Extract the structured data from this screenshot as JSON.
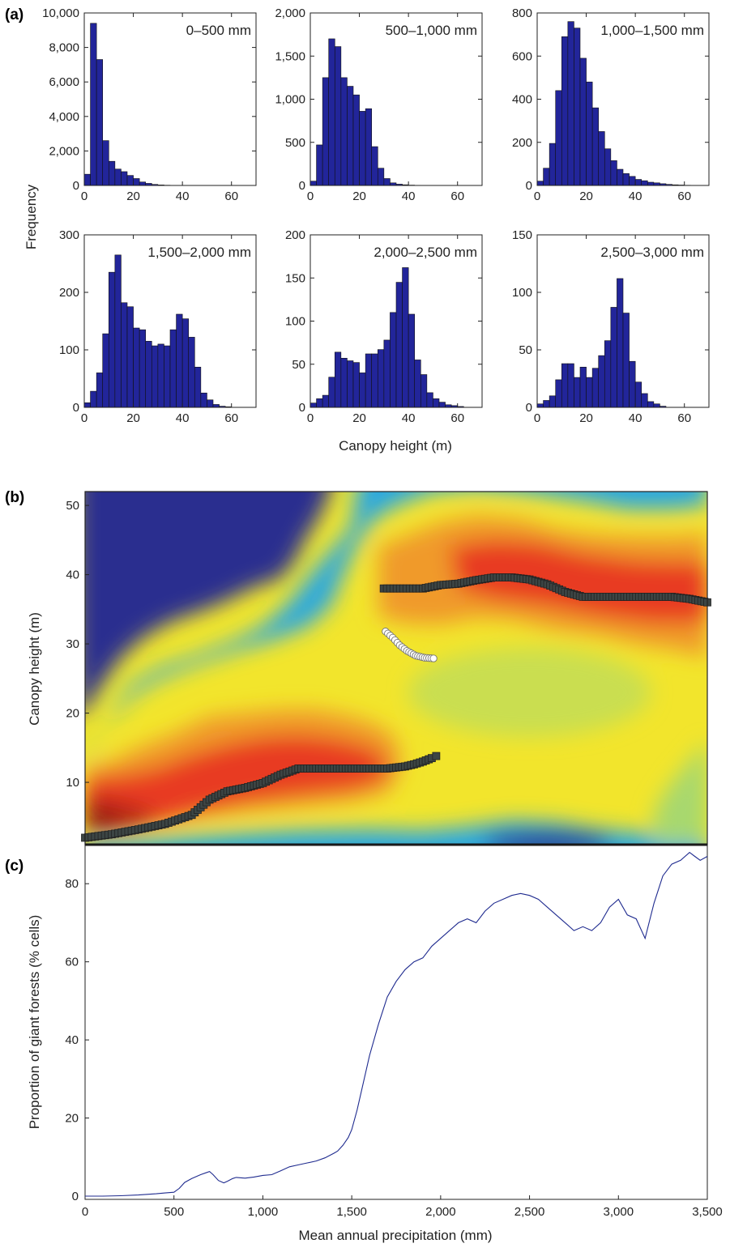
{
  "chart_data": [
    {
      "panel": "(a)",
      "type": "bar",
      "xlabel": "Canopy height (m)",
      "ylabel": "Frequency",
      "bin_width_m": 2.5,
      "bin_starts": [
        0,
        2.5,
        5,
        7.5,
        10,
        12.5,
        15,
        17.5,
        20,
        22.5,
        25,
        27.5,
        30,
        32.5,
        35,
        37.5,
        40,
        42.5,
        45,
        47.5,
        50,
        52.5,
        55,
        57.5,
        60,
        62.5,
        65,
        67.5
      ],
      "xlim": [
        0,
        70
      ],
      "xticks": [
        "0",
        "20",
        "40",
        "60"
      ],
      "bar_color": "#22259a",
      "histograms": [
        {
          "label": "0–500 mm",
          "ylim": [
            0,
            10000
          ],
          "yticks": [
            "0",
            "2,000",
            "4,000",
            "6,000",
            "8,000",
            "10,000"
          ],
          "values": [
            650,
            9400,
            7300,
            2600,
            1400,
            950,
            800,
            580,
            400,
            200,
            120,
            60,
            30,
            15,
            8,
            4,
            2,
            1,
            0,
            0,
            0,
            0,
            0,
            0,
            0,
            0,
            0,
            0
          ]
        },
        {
          "label": "500–1,000 mm",
          "ylim": [
            0,
            2000
          ],
          "yticks": [
            "0",
            "500",
            "1,000",
            "1,500",
            "2,000"
          ],
          "values": [
            50,
            470,
            1250,
            1700,
            1610,
            1250,
            1150,
            1050,
            860,
            890,
            450,
            200,
            80,
            30,
            15,
            8,
            4,
            2,
            1,
            0,
            0,
            0,
            0,
            0,
            0,
            0,
            0,
            0
          ]
        },
        {
          "label": "1,000–1,500 mm",
          "ylim": [
            0,
            800
          ],
          "yticks": [
            "0",
            "200",
            "400",
            "600",
            "800"
          ],
          "values": [
            20,
            80,
            195,
            440,
            690,
            760,
            730,
            590,
            480,
            360,
            250,
            170,
            115,
            75,
            55,
            42,
            28,
            22,
            15,
            12,
            8,
            5,
            3,
            2,
            1,
            0,
            0,
            0
          ]
        },
        {
          "label": "1,500–2,000 mm",
          "ylim": [
            0,
            300
          ],
          "yticks": [
            "0",
            "100",
            "200",
            "300"
          ],
          "values": [
            8,
            28,
            60,
            128,
            235,
            265,
            182,
            175,
            138,
            135,
            115,
            107,
            110,
            107,
            135,
            162,
            154,
            122,
            70,
            25,
            13,
            5,
            2,
            1,
            0,
            0,
            0,
            0
          ]
        },
        {
          "label": "2,000–2,500 mm",
          "ylim": [
            0,
            200
          ],
          "yticks": [
            "0",
            "50",
            "100",
            "150",
            "200"
          ],
          "values": [
            5,
            10,
            14,
            35,
            64,
            57,
            54,
            52,
            40,
            62,
            62,
            67,
            78,
            110,
            145,
            162,
            108,
            55,
            38,
            17,
            10,
            6,
            3,
            2,
            1,
            0,
            0,
            0
          ]
        },
        {
          "label": "2,500–3,000 mm",
          "ylim": [
            0,
            150
          ],
          "yticks": [
            "0",
            "50",
            "100",
            "150"
          ],
          "values": [
            3,
            6,
            10,
            24,
            38,
            38,
            26,
            35,
            26,
            34,
            45,
            58,
            87,
            112,
            82,
            40,
            22,
            12,
            5,
            3,
            1,
            0,
            0,
            0,
            0,
            0,
            0,
            0
          ]
        }
      ]
    },
    {
      "panel": "(b)",
      "type": "heatmap",
      "ylabel": "Canopy height (m)",
      "ylim": [
        1,
        52
      ],
      "xlim": [
        0,
        3500
      ],
      "yticks": [
        "10",
        "20",
        "30",
        "40",
        "50"
      ],
      "colormap": [
        "#2a2f8f",
        "#29a8e0",
        "#a7d86e",
        "#f2e52c",
        "#f09a2a",
        "#e83a22",
        "#b22417",
        "#8b1a12"
      ],
      "lower_mode": {
        "marker": "dark-square",
        "x": [
          0,
          150,
          300,
          450,
          600,
          700,
          800,
          900,
          1000,
          1100,
          1200,
          1300,
          1400,
          1500,
          1600,
          1700,
          1800,
          1850,
          1900,
          1950,
          1975
        ],
        "y": [
          2,
          2.5,
          3.2,
          4.0,
          5.3,
          7.5,
          8.7,
          9.2,
          9.9,
          11.1,
          12.0,
          12.0,
          12.0,
          12.0,
          12.0,
          12.0,
          12.3,
          12.6,
          13.0,
          13.5,
          13.8
        ]
      },
      "upper_mode": {
        "marker": "dark-square",
        "x": [
          1680,
          1900,
          2000,
          2100,
          2200,
          2300,
          2400,
          2500,
          2600,
          2700,
          2800,
          2900,
          3000,
          3100,
          3200,
          3300,
          3400,
          3500
        ],
        "y": [
          38,
          38,
          38.5,
          38.7,
          39.2,
          39.6,
          39.6,
          39.3,
          38.6,
          37.5,
          36.8,
          36.8,
          36.8,
          36.8,
          36.8,
          36.8,
          36.5,
          36.0
        ]
      },
      "trough": {
        "marker": "white-circle",
        "x": [
          1690,
          1730,
          1770,
          1810,
          1860,
          1910,
          1960
        ],
        "y": [
          31.8,
          30.9,
          29.8,
          29.0,
          28.3,
          28.0,
          27.9
        ]
      }
    },
    {
      "panel": "(c)",
      "type": "line",
      "xlabel": "Mean annual precipitation (mm)",
      "ylabel": "Proportion of giant forests (% cells)",
      "xlim": [
        0,
        3500
      ],
      "ylim": [
        0,
        90
      ],
      "xticks": [
        "0",
        "500",
        "1,000",
        "1,500",
        "2,000",
        "2,500",
        "3,000",
        "3,500"
      ],
      "yticks": [
        "0",
        "20",
        "40",
        "60",
        "80"
      ],
      "line_color": "#1f2b8f",
      "x": [
        0,
        100,
        200,
        300,
        400,
        450,
        500,
        530,
        560,
        600,
        650,
        700,
        720,
        750,
        780,
        800,
        830,
        850,
        900,
        950,
        1000,
        1050,
        1100,
        1150,
        1200,
        1250,
        1300,
        1350,
        1400,
        1420,
        1450,
        1480,
        1500,
        1530,
        1560,
        1600,
        1650,
        1700,
        1750,
        1800,
        1850,
        1900,
        1950,
        2000,
        2050,
        2100,
        2150,
        2200,
        2250,
        2300,
        2350,
        2400,
        2450,
        2500,
        2550,
        2600,
        2650,
        2700,
        2750,
        2800,
        2850,
        2900,
        2950,
        3000,
        3050,
        3100,
        3150,
        3200,
        3250,
        3300,
        3350,
        3400,
        3430,
        3460,
        3500
      ],
      "y": [
        0,
        0,
        0.1,
        0.3,
        0.6,
        0.8,
        1,
        2,
        3.5,
        4.5,
        5.5,
        6.3,
        5.5,
        4.0,
        3.4,
        3.8,
        4.5,
        4.8,
        4.6,
        4.9,
        5.3,
        5.5,
        6.5,
        7.5,
        8.0,
        8.5,
        9.0,
        9.8,
        11,
        11.5,
        13,
        15,
        17,
        22,
        28,
        36,
        44,
        51,
        55,
        58,
        60,
        61,
        64,
        66,
        68,
        70,
        71,
        70,
        73,
        75,
        76,
        77,
        77.5,
        77,
        76,
        74,
        72,
        70,
        68,
        69,
        68,
        70,
        74,
        76,
        72,
        71,
        66,
        75,
        82,
        85,
        86,
        88,
        87,
        86,
        87
      ]
    }
  ]
}
